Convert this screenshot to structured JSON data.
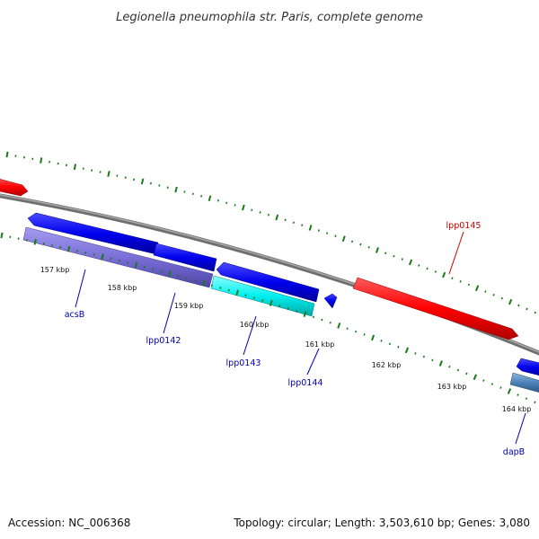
{
  "title": "Legionella pneumophila str. Paris, complete genome",
  "footer": {
    "accession": "Accession: NC_006368",
    "summary": "Topology: circular; Length: 3,503,610 bp; Genes: 3,080"
  },
  "scale_ticks": [
    {
      "label": "157 kbp"
    },
    {
      "label": "158 kbp"
    },
    {
      "label": "159 kbp"
    },
    {
      "label": "160 kbp"
    },
    {
      "label": "161 kbp"
    },
    {
      "label": "162 kbp"
    },
    {
      "label": "163 kbp"
    },
    {
      "label": "164 kbp"
    }
  ],
  "gene_labels": [
    {
      "text": "acsB",
      "color": "#0000aa"
    },
    {
      "text": "lpp0142",
      "color": "#0000aa"
    },
    {
      "text": "lpp0143",
      "color": "#0000aa"
    },
    {
      "text": "lpp0144",
      "color": "#0000aa"
    },
    {
      "text": "lpp0145",
      "color": "#cc0000"
    },
    {
      "text": "dapB",
      "color": "#0000aa"
    }
  ],
  "colors": {
    "backbone": "#808080",
    "forward_gene": "#ff0000",
    "reverse_gene": "#0000ee",
    "acsB_cds": "#7a6fd6",
    "lpp0143_cds": "#00eeee",
    "dapB_cds": "#4a7fb5",
    "ticks": "#1a7a1a",
    "label_blue": "#0000aa",
    "label_red": "#cc0000"
  }
}
